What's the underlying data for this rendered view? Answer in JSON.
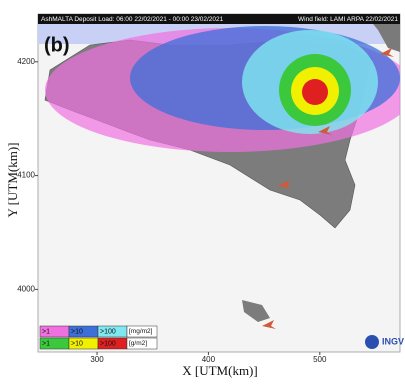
{
  "header": {
    "left": "AshMALTA Deposit Load: 06:00 22/02/2021 - 00:00 23/02/2021",
    "right": "Wind field: LAMI ARPA 22/02/2021"
  },
  "panel_label": "(b)",
  "map": {
    "xlim": [
      247,
      572
    ],
    "ylim": [
      3945,
      4242
    ],
    "x_axis": {
      "label": "X [UTM(km)]",
      "ticks": [
        300,
        400,
        500
      ]
    },
    "y_axis": {
      "label": "Y [UTM(km)]",
      "ticks": [
        4000,
        4100,
        4200
      ]
    }
  },
  "legend": [
    {
      "labels": [
        ">1",
        ">10",
        ">100"
      ],
      "colors": [
        "#f070e0",
        "#3c6fd8",
        "#80e8f0"
      ],
      "unit": "[mg/m2]"
    },
    {
      "labels": [
        ">1",
        ">10",
        ">100"
      ],
      "colors": [
        "#3cc83c",
        "#f0f000",
        "#e02020"
      ],
      "unit": "[g/m2]"
    }
  ],
  "logo": "INGV"
}
